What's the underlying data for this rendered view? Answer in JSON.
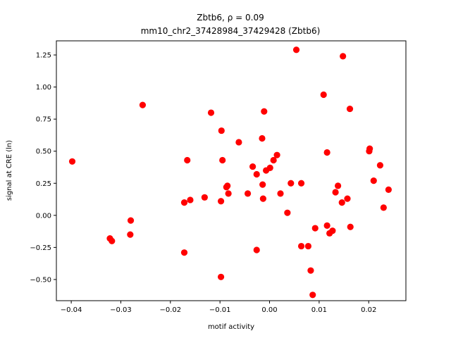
{
  "chart_data": {
    "type": "scatter",
    "title_line1": "Zbtb6, ρ = 0.09",
    "title_line2": "mm10_chr2_37428984_37429428 (Zbtb6)",
    "xlabel": "motif activity",
    "ylabel": "signal at CRE (ln)",
    "xlim": [
      -0.043,
      0.0275
    ],
    "ylim": [
      -0.665,
      1.36
    ],
    "xticks": [
      -0.04,
      -0.03,
      -0.02,
      -0.01,
      0.0,
      0.01,
      0.02
    ],
    "xtick_labels": [
      "−0.04",
      "−0.03",
      "−0.02",
      "−0.01",
      "0.00",
      "0.01",
      "0.02"
    ],
    "yticks": [
      -0.5,
      -0.25,
      0.0,
      0.25,
      0.5,
      0.75,
      1.0,
      1.25
    ],
    "ytick_labels": [
      "−0.50",
      "−0.25",
      "0.00",
      "0.25",
      "0.50",
      "0.75",
      "1.00",
      "1.25"
    ],
    "grid": false,
    "marker_color": "#ff0000",
    "series": [
      {
        "points": [
          [
            -0.0398,
            0.42
          ],
          [
            -0.0322,
            -0.18
          ],
          [
            -0.0318,
            -0.2
          ],
          [
            -0.028,
            -0.04
          ],
          [
            -0.0281,
            -0.15
          ],
          [
            -0.0256,
            0.86
          ],
          [
            -0.0172,
            0.1
          ],
          [
            -0.0172,
            -0.29
          ],
          [
            -0.0166,
            0.43
          ],
          [
            -0.016,
            0.12
          ],
          [
            -0.0131,
            0.14
          ],
          [
            -0.0118,
            0.8
          ],
          [
            -0.0097,
            0.66
          ],
          [
            -0.0095,
            0.43
          ],
          [
            -0.0098,
            0.11
          ],
          [
            -0.0098,
            -0.48
          ],
          [
            -0.0085,
            0.23
          ],
          [
            -0.0087,
            0.22
          ],
          [
            -0.0083,
            0.17
          ],
          [
            -0.0062,
            0.57
          ],
          [
            -0.0044,
            0.17
          ],
          [
            -0.0034,
            0.38
          ],
          [
            -0.0026,
            0.32
          ],
          [
            -0.0026,
            -0.27
          ],
          [
            -0.0015,
            0.6
          ],
          [
            -0.0014,
            0.24
          ],
          [
            -0.0013,
            0.13
          ],
          [
            -0.0011,
            0.81
          ],
          [
            -0.0007,
            0.35
          ],
          [
            0.0001,
            0.37
          ],
          [
            0.0008,
            0.43
          ],
          [
            0.0015,
            0.47
          ],
          [
            0.0022,
            0.17
          ],
          [
            0.0036,
            0.02
          ],
          [
            0.0043,
            0.25
          ],
          [
            0.0054,
            1.29
          ],
          [
            0.0064,
            0.25
          ],
          [
            0.0064,
            -0.24
          ],
          [
            0.0078,
            -0.24
          ],
          [
            0.0083,
            -0.43
          ],
          [
            0.0087,
            -0.62
          ],
          [
            0.0092,
            -0.1
          ],
          [
            0.0109,
            0.94
          ],
          [
            0.0116,
            -0.08
          ],
          [
            0.0116,
            0.49
          ],
          [
            0.0121,
            -0.14
          ],
          [
            0.0127,
            -0.12
          ],
          [
            0.0133,
            0.18
          ],
          [
            0.0138,
            0.23
          ],
          [
            0.0146,
            0.1
          ],
          [
            0.0148,
            1.24
          ],
          [
            0.0157,
            0.13
          ],
          [
            0.0162,
            0.83
          ],
          [
            0.0163,
            -0.09
          ],
          [
            0.0201,
            0.5
          ],
          [
            0.0202,
            0.52
          ],
          [
            0.021,
            0.27
          ],
          [
            0.0223,
            0.39
          ],
          [
            0.023,
            0.06
          ],
          [
            0.024,
            0.2
          ]
        ]
      }
    ]
  }
}
